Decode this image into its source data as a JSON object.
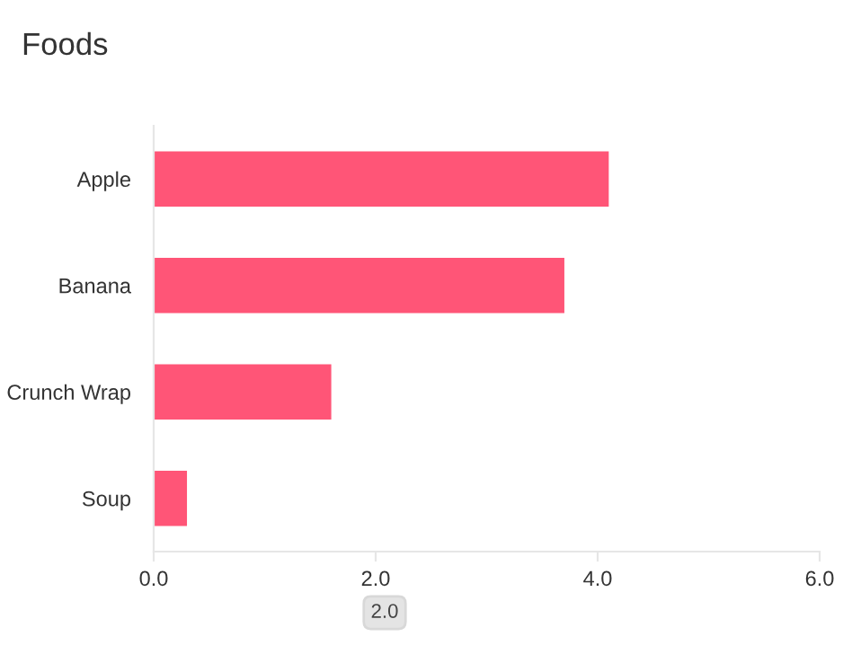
{
  "chart_data": {
    "type": "bar",
    "orientation": "horizontal",
    "title": "Foods",
    "categories": [
      "Apple",
      "Banana",
      "Crunch Wrap",
      "Soup"
    ],
    "values": [
      4.1,
      3.7,
      1.6,
      0.3
    ],
    "color": "#ff5577",
    "xlim": [
      0,
      6
    ],
    "xticks": [
      {
        "value": 0,
        "label": "0.0"
      },
      {
        "value": 2,
        "label": "2.0"
      },
      {
        "value": 4,
        "label": "4.0"
      },
      {
        "value": 6,
        "label": "6.0"
      }
    ],
    "grid": false,
    "legend": false,
    "annotations": [
      "2.0"
    ]
  }
}
